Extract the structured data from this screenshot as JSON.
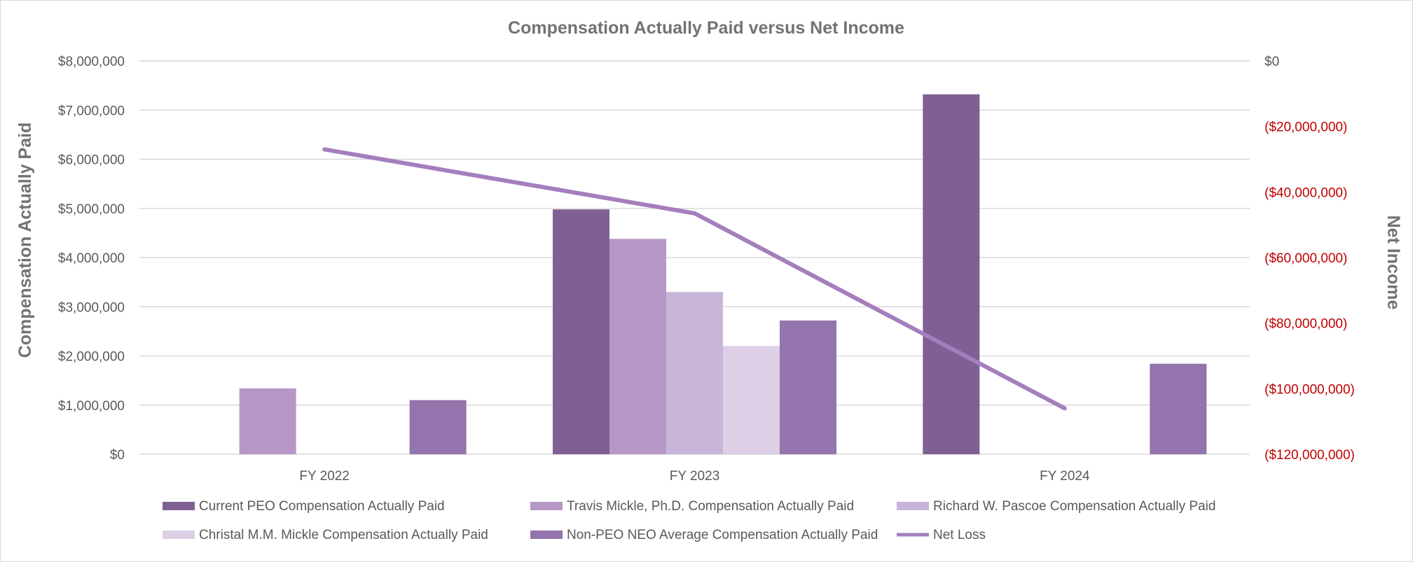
{
  "chart_data": {
    "type": "bar",
    "title": "Compensation Actually Paid versus Net Income",
    "xlabel": "",
    "ylabel": "Compensation Actually Paid",
    "y2label": "Net Income",
    "categories": [
      "FY 2022",
      "FY 2023",
      "FY 2024"
    ],
    "ylim": [
      0,
      8000000
    ],
    "y2lim": [
      -120000000,
      0
    ],
    "yticks": [
      "$0",
      "$1,000,000",
      "$2,000,000",
      "$3,000,000",
      "$4,000,000",
      "$5,000,000",
      "$6,000,000",
      "$7,000,000",
      "$8,000,000"
    ],
    "y2ticks": [
      "$0",
      "($20,000,000)",
      "($40,000,000)",
      "($60,000,000)",
      "($80,000,000)",
      "($100,000,000)",
      "($120,000,000)"
    ],
    "grid": true,
    "legend_position": "bottom",
    "series": [
      {
        "name": "Current PEO Compensation Actually Paid",
        "kind": "bar",
        "color": "#7f6094",
        "values": [
          null,
          4980000,
          7320000
        ]
      },
      {
        "name": "Travis Mickle, Ph.D. Compensation Actually Paid",
        "kind": "bar",
        "color": "#b797c7",
        "values": [
          1340000,
          4380000,
          null
        ]
      },
      {
        "name": "Richard W. Pascoe Compensation Actually Paid",
        "kind": "bar",
        "color": "#c9b5da",
        "values": [
          null,
          3300000,
          null
        ]
      },
      {
        "name": "Christal M.M. Mickle Compensation Actually Paid",
        "kind": "bar",
        "color": "#dccfe6",
        "values": [
          null,
          2200000,
          null
        ]
      },
      {
        "name": "Non-PEO NEO Average Compensation Actually Paid",
        "kind": "bar",
        "color": "#9374ac",
        "values": [
          1100000,
          2720000,
          1840000
        ]
      },
      {
        "name": "Net Loss",
        "kind": "line",
        "axis": "y2",
        "color": "#a47ebd",
        "values": [
          -27000000,
          -46500000,
          -106000000
        ]
      }
    ],
    "colors": {
      "grid": "#d9d9d9",
      "axis_title": "#767171",
      "tick": "#595959",
      "negative_tick": "#c00000"
    }
  }
}
